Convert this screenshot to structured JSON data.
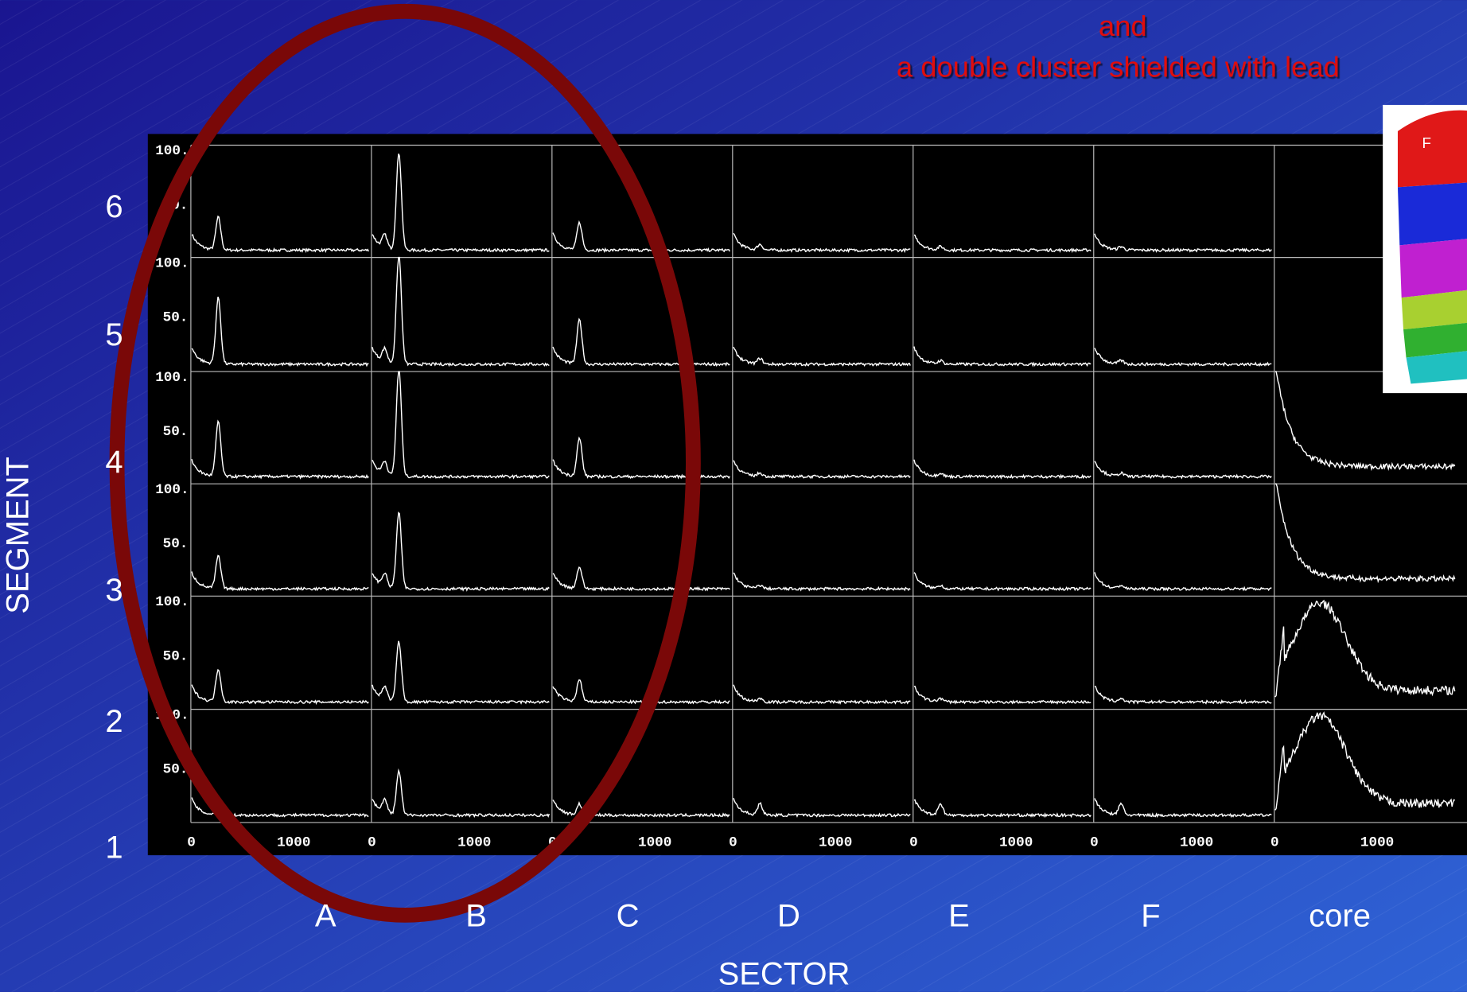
{
  "title_lines": [
    "and",
    "a double cluster shielded with lead"
  ],
  "y_axis_title": "SEGMENT",
  "x_axis_title": "SECTOR",
  "segments": [
    "6",
    "5",
    "4",
    "3",
    "2",
    "1"
  ],
  "sectors": [
    "A",
    "B",
    "C",
    "D",
    "E",
    "F",
    "core"
  ],
  "panel": {
    "y_tick_labels": [
      "100.",
      "50."
    ],
    "x_tick_labels": [
      "0",
      "1000"
    ]
  },
  "inset": {
    "label": "F"
  }
}
